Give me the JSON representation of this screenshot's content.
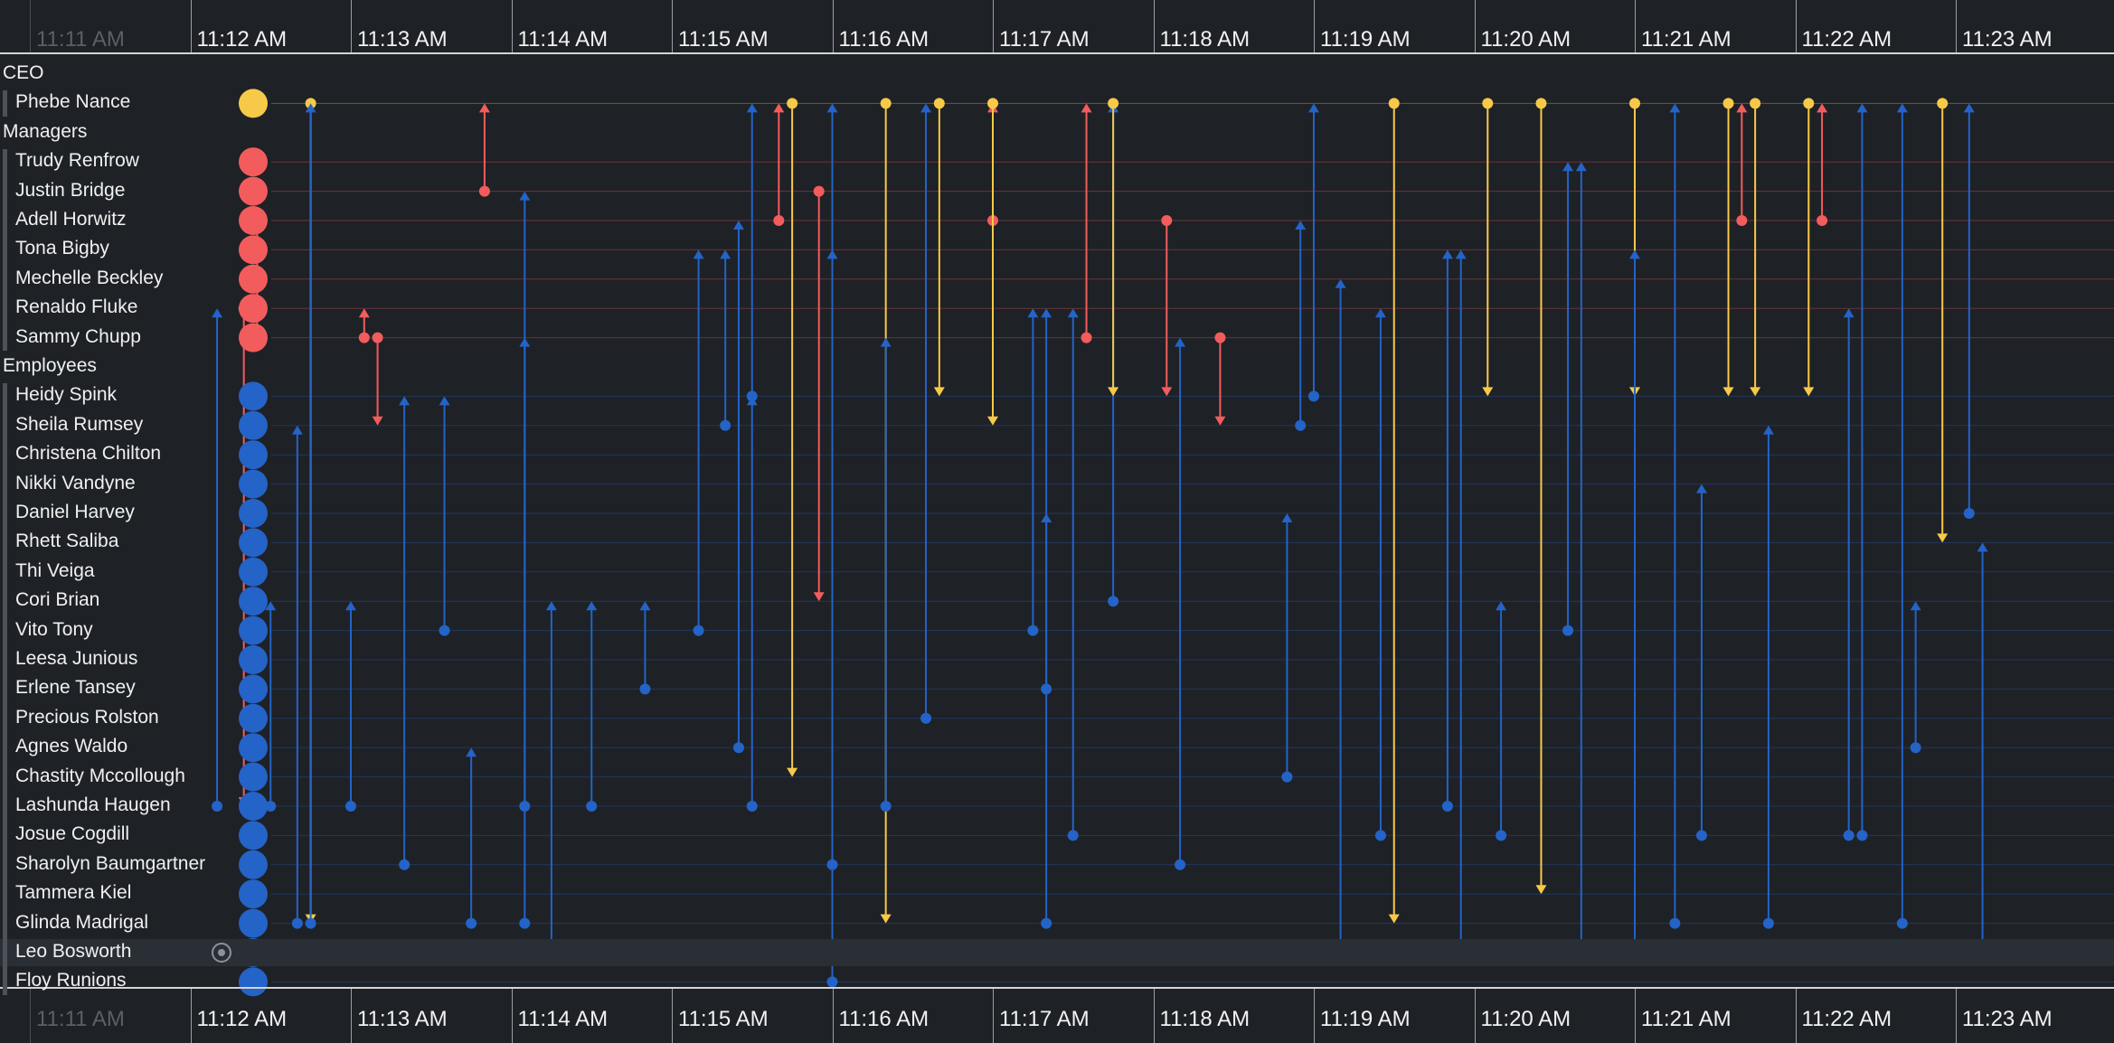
{
  "colors": {
    "ceo": "#f7c948",
    "manager": "#f25c5c",
    "employee": "#2463c7",
    "background": "#1e2126"
  },
  "time_axis": {
    "ticks": [
      "11:11 AM",
      "11:12 AM",
      "11:13 AM",
      "11:14 AM",
      "11:15 AM",
      "11:16 AM",
      "11:17 AM",
      "11:18 AM",
      "11:19 AM",
      "11:20 AM",
      "11:21 AM",
      "11:22 AM",
      "11:23 AM"
    ],
    "faded_ticks": [
      "11:11 AM"
    ]
  },
  "focus_icon": "target-icon",
  "groups": [
    {
      "name": "CEO",
      "role": "ceo",
      "people": [
        "Phebe Nance"
      ]
    },
    {
      "name": "Managers",
      "role": "manager",
      "people": [
        "Trudy Renfrow",
        "Justin Bridge",
        "Adell Horwitz",
        "Tona Bigby",
        "Mechelle Beckley",
        "Renaldo Fluke",
        "Sammy Chupp"
      ]
    },
    {
      "name": "Employees",
      "role": "employee",
      "people": [
        "Heidy Spink",
        "Sheila Rumsey",
        "Christena Chilton",
        "Nikki Vandyne",
        "Daniel Harvey",
        "Rhett Saliba",
        "Thi Veiga",
        "Cori Brian",
        "Vito Tony",
        "Leesa Junious",
        "Erlene Tansey",
        "Precious Rolston",
        "Agnes Waldo",
        "Chastity Mccollough",
        "Lashunda Haugen",
        "Josue Cogdill",
        "Sharolyn Baumgartner",
        "Tammera Kiel",
        "Glinda Madrigal",
        "Leo Bosworth",
        "Floy Runions"
      ]
    }
  ],
  "highlighted_person": "Leo Bosworth",
  "chart_data": {
    "type": "timeline",
    "x_range": [
      "11:11 AM",
      "11:23 AM"
    ],
    "messages": [
      {
        "time": "11:12:45",
        "from": "Phebe Nance",
        "to": "Glinda Madrigal"
      },
      {
        "time": "11:12:45",
        "from": "Glinda Madrigal",
        "to": "Phebe Nance"
      },
      {
        "time": "11:12:25",
        "from": "Sammy Chupp",
        "to": "Adell Horwitz"
      },
      {
        "time": "11:12:20",
        "from": "Renaldo Fluke",
        "to": "Lashunda Haugen"
      },
      {
        "time": "11:13:05",
        "from": "Sammy Chupp",
        "to": "Renaldo Fluke"
      },
      {
        "time": "11:13:10",
        "from": "Sammy Chupp",
        "to": "Sheila Rumsey"
      },
      {
        "time": "11:14:05",
        "from": "Lashunda Haugen",
        "to": "Sammy Chupp"
      },
      {
        "time": "11:13:45",
        "from": "Glinda Madrigal",
        "to": "Agnes Waldo"
      },
      {
        "time": "11:13:50",
        "from": "Justin Bridge",
        "to": "Phebe Nance"
      },
      {
        "time": "11:15:10",
        "from": "Vito Tony",
        "to": "Tona Bigby"
      },
      {
        "time": "11:15:30",
        "from": "Heidy Spink",
        "to": "Phebe Nance"
      },
      {
        "time": "11:15:30",
        "from": "Lashunda Haugen",
        "to": "Heidy Spink"
      },
      {
        "time": "11:15:40",
        "from": "Adell Horwitz",
        "to": "Phebe Nance"
      },
      {
        "time": "11:15:45",
        "from": "Phebe Nance",
        "to": "Chastity Mccollough"
      },
      {
        "time": "11:16:00",
        "from": "Floy Runions",
        "to": "Phebe Nance"
      },
      {
        "time": "11:15:55",
        "from": "Justin Bridge",
        "to": "Cori Brian"
      },
      {
        "time": "11:16:20",
        "from": "Phebe Nance",
        "to": "Glinda Madrigal"
      },
      {
        "time": "11:16:40",
        "from": "Phebe Nance",
        "to": "Heidy Spink"
      },
      {
        "time": "11:17:00",
        "from": "Adell Horwitz",
        "to": "Phebe Nance"
      },
      {
        "time": "11:17:00",
        "from": "Phebe Nance",
        "to": "Sheila Rumsey"
      },
      {
        "time": "11:17:15",
        "from": "Vito Tony",
        "to": "Renaldo Fluke"
      },
      {
        "time": "11:17:20",
        "from": "Erlene Tansey",
        "to": "Renaldo Fluke"
      },
      {
        "time": "11:17:35",
        "from": "Sammy Chupp",
        "to": "Phebe Nance"
      },
      {
        "time": "11:17:45",
        "from": "Cori Brian",
        "to": "Phebe Nance"
      },
      {
        "time": "11:17:45",
        "from": "Phebe Nance",
        "to": "Heidy Spink"
      },
      {
        "time": "11:18:05",
        "from": "Adell Horwitz",
        "to": "Heidy Spink"
      },
      {
        "time": "11:18:25",
        "from": "Sammy Chupp",
        "to": "Sheila Rumsey"
      },
      {
        "time": "11:18:55",
        "from": "Sheila Rumsey",
        "to": "Adell Horwitz"
      },
      {
        "time": "11:19:00",
        "from": "Heidy Spink",
        "to": "Phebe Nance"
      },
      {
        "time": "11:19:25",
        "from": "Josue Cogdill",
        "to": "Renaldo Fluke"
      },
      {
        "time": "11:19:30",
        "from": "Phebe Nance",
        "to": "Glinda Madrigal"
      },
      {
        "time": "11:19:55",
        "from": "Leo Bosworth",
        "to": "Tona Bigby"
      },
      {
        "time": "11:20:05",
        "from": "Phebe Nance",
        "to": "Heidy Spink"
      },
      {
        "time": "11:20:25",
        "from": "Phebe Nance",
        "to": "Tammera Kiel"
      },
      {
        "time": "11:20:35",
        "from": "Vito Tony",
        "to": "Trudy Renfrow"
      },
      {
        "time": "11:21:00",
        "from": "Phebe Nance",
        "to": "Heidy Spink"
      },
      {
        "time": "11:21:00",
        "from": "Leo Bosworth",
        "to": "Tona Bigby"
      },
      {
        "time": "11:21:15",
        "from": "Glinda Madrigal",
        "to": "Phebe Nance"
      },
      {
        "time": "11:21:35",
        "from": "Phebe Nance",
        "to": "Heidy Spink"
      },
      {
        "time": "11:21:40",
        "from": "Adell Horwitz",
        "to": "Phebe Nance"
      },
      {
        "time": "11:21:45",
        "from": "Phebe Nance",
        "to": "Heidy Spink"
      },
      {
        "time": "11:22:05",
        "from": "Phebe Nance",
        "to": "Heidy Spink"
      },
      {
        "time": "11:22:10",
        "from": "Adell Horwitz",
        "to": "Phebe Nance"
      },
      {
        "time": "11:22:25",
        "from": "Josue Cogdill",
        "to": "Phebe Nance"
      },
      {
        "time": "11:22:40",
        "from": "Glinda Madrigal",
        "to": "Phebe Nance"
      },
      {
        "time": "11:22:55",
        "from": "Phebe Nance",
        "to": "Rhett Saliba"
      },
      {
        "time": "11:23:05",
        "from": "Daniel Harvey",
        "to": "Phebe Nance"
      },
      {
        "time": "11:12:10",
        "from": "Lashunda Haugen",
        "to": "Renaldo Fluke"
      },
      {
        "time": "11:12:30",
        "from": "Lashunda Haugen",
        "to": "Cori Brian"
      },
      {
        "time": "11:12:40",
        "from": "Glinda Madrigal",
        "to": "Sheila Rumsey"
      },
      {
        "time": "11:13:00",
        "from": "Lashunda Haugen",
        "to": "Cori Brian"
      },
      {
        "time": "11:13:20",
        "from": "Sharolyn Baumgartner",
        "to": "Heidy Spink"
      },
      {
        "time": "11:13:35",
        "from": "Vito Tony",
        "to": "Heidy Spink"
      },
      {
        "time": "11:14:05",
        "from": "Glinda Madrigal",
        "to": "Justin Bridge"
      },
      {
        "time": "11:14:15",
        "from": "Leo Bosworth",
        "to": "Cori Brian"
      },
      {
        "time": "11:14:30",
        "from": "Lashunda Haugen",
        "to": "Cori Brian"
      },
      {
        "time": "11:14:50",
        "from": "Erlene Tansey",
        "to": "Cori Brian"
      },
      {
        "time": "11:15:20",
        "from": "Sheila Rumsey",
        "to": "Tona Bigby"
      },
      {
        "time": "11:15:25",
        "from": "Agnes Waldo",
        "to": "Adell Horwitz"
      },
      {
        "time": "11:16:00",
        "from": "Sharolyn Baumgartner",
        "to": "Tona Bigby"
      },
      {
        "time": "11:16:20",
        "from": "Lashunda Haugen",
        "to": "Sammy Chupp"
      },
      {
        "time": "11:16:35",
        "from": "Precious Rolston",
        "to": "Phebe Nance"
      },
      {
        "time": "11:17:20",
        "from": "Glinda Madrigal",
        "to": "Daniel Harvey"
      },
      {
        "time": "11:17:30",
        "from": "Josue Cogdill",
        "to": "Renaldo Fluke"
      },
      {
        "time": "11:18:10",
        "from": "Sharolyn Baumgartner",
        "to": "Sammy Chupp"
      },
      {
        "time": "11:18:50",
        "from": "Chastity Mccollough",
        "to": "Daniel Harvey"
      },
      {
        "time": "11:19:10",
        "from": "Leo Bosworth",
        "to": "Mechelle Beckley"
      },
      {
        "time": "11:19:50",
        "from": "Lashunda Haugen",
        "to": "Tona Bigby"
      },
      {
        "time": "11:20:10",
        "from": "Josue Cogdill",
        "to": "Cori Brian"
      },
      {
        "time": "11:20:40",
        "from": "Leo Bosworth",
        "to": "Trudy Renfrow"
      },
      {
        "time": "11:21:25",
        "from": "Josue Cogdill",
        "to": "Nikki Vandyne"
      },
      {
        "time": "11:21:50",
        "from": "Glinda Madrigal",
        "to": "Sheila Rumsey"
      },
      {
        "time": "11:22:20",
        "from": "Josue Cogdill",
        "to": "Renaldo Fluke"
      },
      {
        "time": "11:22:45",
        "from": "Agnes Waldo",
        "to": "Cori Brian"
      },
      {
        "time": "11:23:10",
        "from": "Leo Bosworth",
        "to": "Rhett Saliba"
      }
    ]
  }
}
